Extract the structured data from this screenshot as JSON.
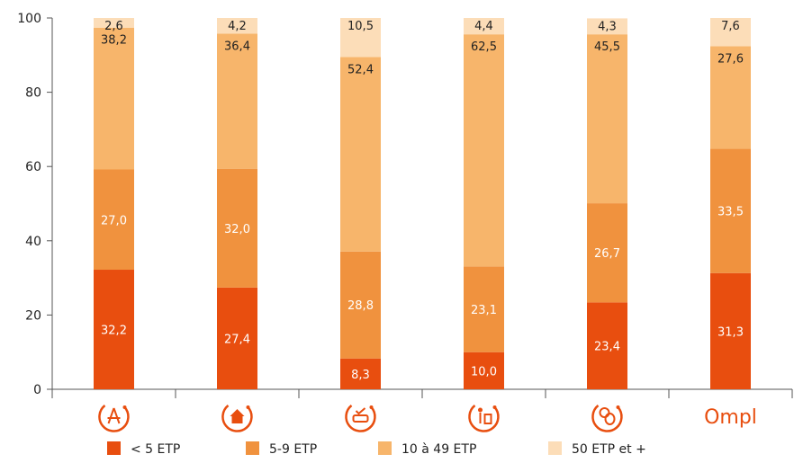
{
  "chart_data": {
    "type": "bar",
    "stacked": true,
    "categories": [
      "icon-architecture",
      "icon-housing",
      "icon-automotive",
      "icon-notary",
      "icon-other",
      "Ompl"
    ],
    "category_icons": [
      "compass-ruler-icon",
      "house-euro-icon",
      "car-check-icon",
      "person-scale-icon",
      "coins-icon",
      "ompl-logo"
    ],
    "category_brand_label": "Ompl",
    "series": [
      {
        "name": "< 5 ETP",
        "color": "#E84E0F",
        "values": [
          32.2,
          27.4,
          8.3,
          10.0,
          23.4,
          31.3
        ],
        "labels": [
          "32,2",
          "27,4",
          "8,3",
          "10,0",
          "23,4",
          "31,3"
        ]
      },
      {
        "name": "5-9 ETP",
        "color": "#F0923E",
        "values": [
          27.0,
          32.0,
          28.8,
          23.1,
          26.7,
          33.5
        ],
        "labels": [
          "27,0",
          "32,0",
          "28,8",
          "23,1",
          "26,7",
          "33,5"
        ]
      },
      {
        "name": "10 à 49 ETP",
        "color": "#F7B56B",
        "values": [
          38.2,
          36.4,
          52.4,
          62.5,
          45.5,
          27.6
        ],
        "labels": [
          "38,2",
          "36,4",
          "52,4",
          "62,5",
          "45,5",
          "27,6"
        ]
      },
      {
        "name": "50 ETP et +",
        "color": "#FCDDB8",
        "values": [
          2.6,
          4.2,
          10.5,
          4.4,
          4.3,
          7.6
        ],
        "labels": [
          "2,6",
          "4,2",
          "10,5",
          "4,4",
          "4,3",
          "7,6"
        ]
      }
    ],
    "label_colors": [
      "#ffffff",
      "#ffffff",
      "#222222",
      "#222222"
    ],
    "ylim": [
      0,
      100
    ],
    "yticks": [
      0,
      20,
      40,
      60,
      80,
      100
    ],
    "ytick_labels": [
      "0",
      "20",
      "40",
      "60",
      "80",
      "100"
    ],
    "grid": false,
    "legend_position": "bottom",
    "icon_color": "#E84E0F"
  }
}
